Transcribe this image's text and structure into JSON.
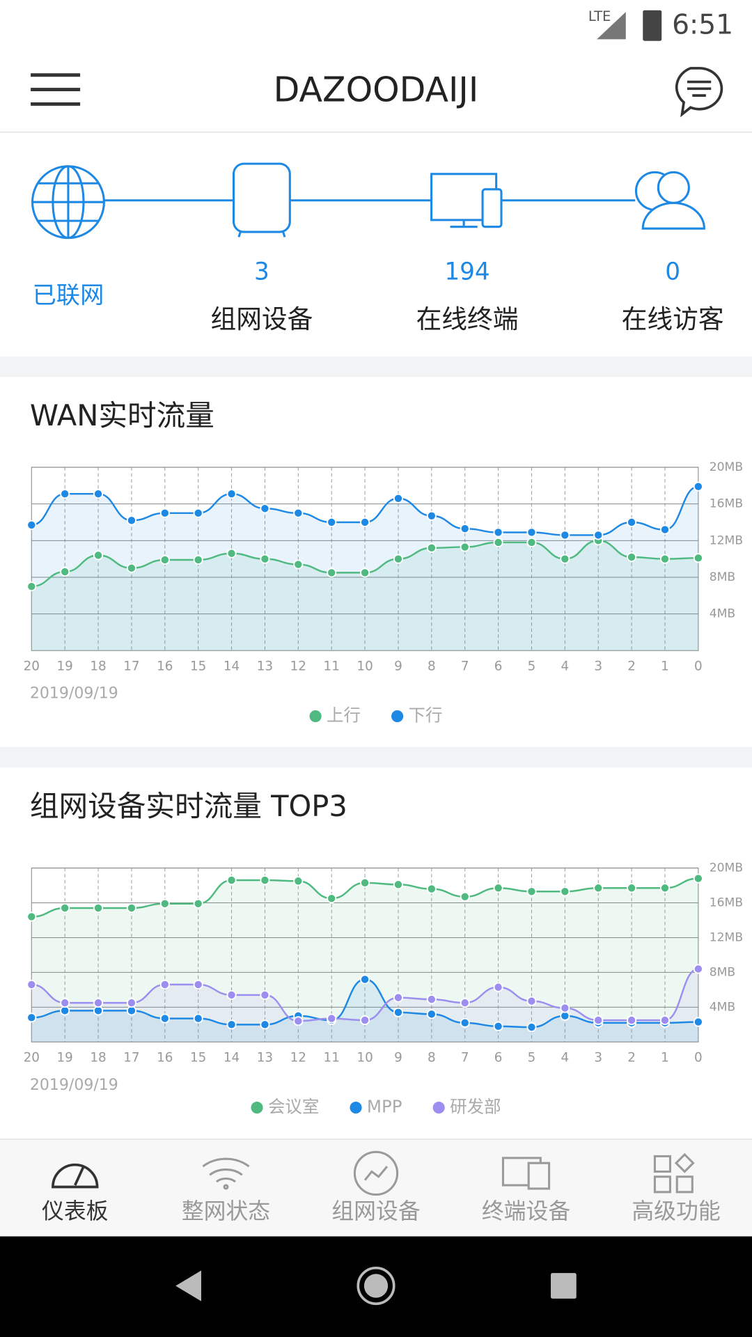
{
  "status_bar": {
    "network": "LTE",
    "time": "6:51"
  },
  "header": {
    "title": "DAZOODAIJI"
  },
  "topology": {
    "internet": "已联网",
    "stats": [
      {
        "count": 3,
        "label": "组网设备"
      },
      {
        "count": 194,
        "label": "在线终端"
      },
      {
        "count": 0,
        "label": "在线访客"
      }
    ]
  },
  "chart_data": [
    {
      "type": "line",
      "title": "WAN实时流量",
      "date": "2019/09/19",
      "categories": [
        "20",
        "19",
        "18",
        "17",
        "16",
        "15",
        "14",
        "13",
        "12",
        "11",
        "10",
        "9",
        "8",
        "7",
        "6",
        "5",
        "4",
        "3",
        "2",
        "1",
        "0"
      ],
      "series": [
        {
          "name": "上行",
          "color": "#4fba80",
          "values": [
            7.0,
            8.6,
            10.4,
            9.0,
            9.9,
            9.9,
            10.6,
            10.0,
            9.4,
            8.5,
            8.5,
            10.0,
            11.2,
            11.3,
            11.8,
            11.8,
            10.0,
            12.0,
            10.2,
            10.0,
            10.1
          ]
        },
        {
          "name": "下行",
          "color": "#1e88e5",
          "values": [
            13.7,
            17.1,
            17.1,
            14.2,
            15.0,
            15.0,
            17.1,
            15.5,
            15.0,
            14.0,
            14.0,
            16.6,
            14.7,
            13.3,
            12.9,
            12.9,
            12.6,
            12.6,
            14.0,
            13.2,
            17.9
          ]
        }
      ],
      "ylim": [
        0,
        20
      ],
      "yticks": [
        {
          "value": 4,
          "label": "4MB"
        },
        {
          "value": 8,
          "label": "8MB"
        },
        {
          "value": 12,
          "label": "12MB"
        },
        {
          "value": 16,
          "label": "16MB"
        },
        {
          "value": 20,
          "label": "20MB"
        }
      ],
      "grid": true
    },
    {
      "type": "line",
      "title": "组网设备实时流量 TOP3",
      "date": "2019/09/19",
      "categories": [
        "20",
        "19",
        "18",
        "17",
        "16",
        "15",
        "14",
        "13",
        "12",
        "11",
        "10",
        "9",
        "8",
        "7",
        "6",
        "5",
        "4",
        "3",
        "2",
        "1",
        "0"
      ],
      "series": [
        {
          "name": "会议室",
          "color": "#4fba80",
          "values": [
            14.4,
            15.4,
            15.4,
            15.4,
            15.9,
            15.9,
            18.6,
            18.6,
            18.5,
            16.5,
            18.3,
            18.1,
            17.6,
            16.7,
            17.7,
            17.3,
            17.3,
            17.7,
            17.7,
            17.7,
            18.8
          ]
        },
        {
          "name": "MPP",
          "color": "#1e88e5",
          "values": [
            2.8,
            3.6,
            3.6,
            3.6,
            2.7,
            2.7,
            2.0,
            2.0,
            3.0,
            2.5,
            7.2,
            3.4,
            3.2,
            2.2,
            1.8,
            1.7,
            3.0,
            2.2,
            2.2,
            2.2,
            2.3
          ]
        },
        {
          "name": "研发部",
          "color": "#9b8ef0",
          "values": [
            6.6,
            4.5,
            4.5,
            4.5,
            6.6,
            6.6,
            5.4,
            5.4,
            2.4,
            2.7,
            2.5,
            5.1,
            4.9,
            4.5,
            6.3,
            4.7,
            3.9,
            2.5,
            2.5,
            2.5,
            8.4
          ]
        }
      ],
      "ylim": [
        0,
        20
      ],
      "yticks": [
        {
          "value": 4,
          "label": "4MB"
        },
        {
          "value": 8,
          "label": "8MB"
        },
        {
          "value": 12,
          "label": "12MB"
        },
        {
          "value": 16,
          "label": "16MB"
        },
        {
          "value": 20,
          "label": "20MB"
        }
      ],
      "grid": true
    }
  ],
  "nav": {
    "items": [
      "仪表板",
      "整网状态",
      "组网设备",
      "终端设备",
      "高级功能"
    ],
    "active": 0
  }
}
